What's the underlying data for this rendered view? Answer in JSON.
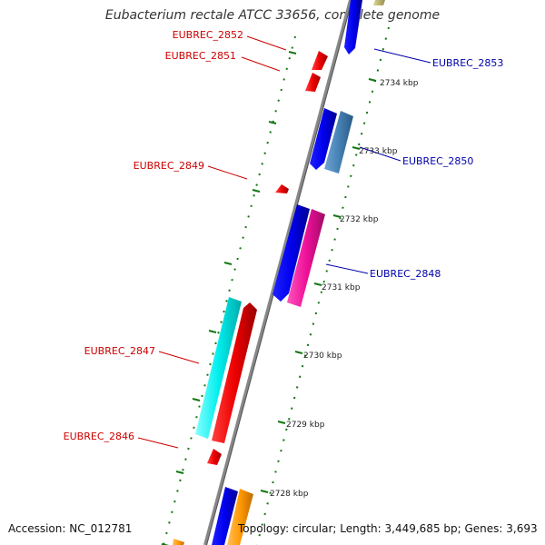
{
  "title": "Eubacterium rectale ATCC 33656, complete genome",
  "footer": {
    "accession": "Accession: NC_012781",
    "topology": "Topology: circular; Length: 3,449,685 bp; Genes: 3,693"
  },
  "scale": {
    "unit": "kbp",
    "ticks": [
      {
        "kbp": 2734,
        "label": "2734 kbp"
      },
      {
        "kbp": 2733,
        "label": "2733 kbp"
      },
      {
        "kbp": 2732,
        "label": "2732 kbp"
      },
      {
        "kbp": 2731,
        "label": "2731 kbp"
      },
      {
        "kbp": 2730,
        "label": "2730 kbp"
      },
      {
        "kbp": 2729,
        "label": "2729 kbp"
      },
      {
        "kbp": 2728,
        "label": "2728 kbp"
      }
    ]
  },
  "genes": [
    {
      "label": "EUBREC_2853",
      "strand": "+",
      "label_color": "#0000aa"
    },
    {
      "label": "EUBREC_2852",
      "strand": "-",
      "label_color": "#cc0000"
    },
    {
      "label": "EUBREC_2851",
      "strand": "-",
      "label_color": "#cc0000"
    },
    {
      "label": "EUBREC_2850",
      "strand": "+",
      "label_color": "#0000aa"
    },
    {
      "label": "EUBREC_2849",
      "strand": "-",
      "label_color": "#cc0000"
    },
    {
      "label": "EUBREC_2848",
      "strand": "+",
      "label_color": "#0000aa"
    },
    {
      "label": "EUBREC_2847",
      "strand": "-",
      "label_color": "#cc0000"
    },
    {
      "label": "EUBREC_2846",
      "strand": "-",
      "label_color": "#cc0000"
    }
  ],
  "colors": {
    "backbone": "#888888",
    "cds_blue": "#0000ee",
    "reverse_red": "#ee0000",
    "ticks_green": "#117711",
    "steelblue": "#4682b4",
    "magenta": "#ee1199",
    "cyan": "#00eeee",
    "orange": "#ff9900",
    "olive": "#bbb060"
  }
}
